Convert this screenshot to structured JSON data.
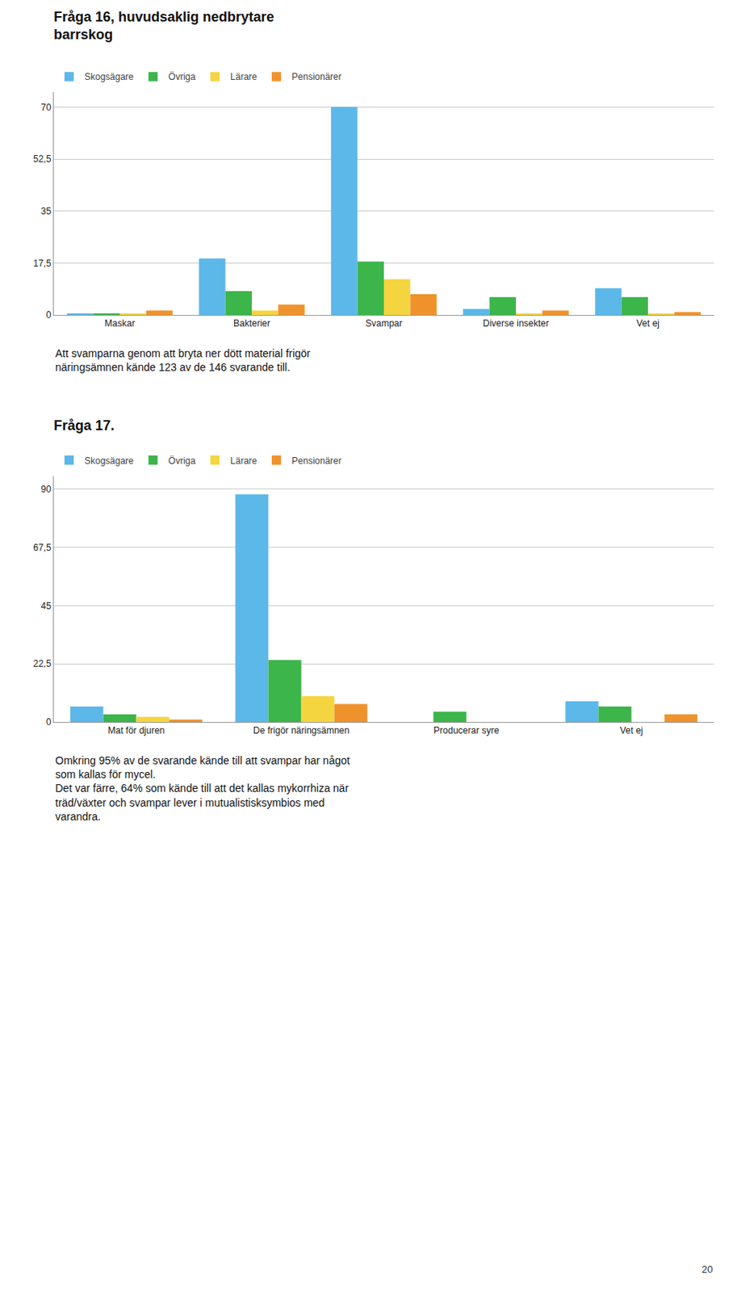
{
  "chart_data": [
    {
      "type": "bar",
      "title": "Fråga 16, huvudsaklig nedbrytare\nbarrskog",
      "categories": [
        "Maskar",
        "Bakterier",
        "Svampar",
        "Diverse insekter",
        "Vet ej"
      ],
      "series": [
        {
          "name": "Skogsägare",
          "color": "#5BB8E8",
          "values": [
            0.5,
            19,
            70,
            2,
            9
          ]
        },
        {
          "name": "Övriga",
          "color": "#3CB54A",
          "values": [
            0.5,
            8,
            18,
            6,
            6
          ]
        },
        {
          "name": "Lärare",
          "color": "#F5D53F",
          "values": [
            0.5,
            1.5,
            12,
            0.5,
            0.5
          ]
        },
        {
          "name": "Pensionärer",
          "color": "#F0922B",
          "values": [
            1.5,
            3.5,
            7,
            1.5,
            1
          ]
        }
      ],
      "ylim": [
        0,
        75
      ],
      "yticks": [
        0,
        {
          "value": 17.5,
          "label": "17,5"
        },
        35,
        {
          "value": 52.5,
          "label": "52,5"
        },
        70
      ],
      "grid": true,
      "legend": "upper left",
      "annotations": [
        "Att svamparna genom att bryta ner dött material frigör\nnäringsämnen kände 123 av de 146 svarande till."
      ]
    },
    {
      "type": "bar",
      "title": "Fråga 17.",
      "categories": [
        "Mat för djuren",
        "De frigör näringsämnen",
        "Producerar syre",
        "Vet ej"
      ],
      "series": [
        {
          "name": "Skogsägare",
          "color": "#5BB8E8",
          "values": [
            6,
            88,
            0,
            8
          ]
        },
        {
          "name": "Övriga",
          "color": "#3CB54A",
          "values": [
            3,
            24,
            4,
            6
          ]
        },
        {
          "name": "Lärare",
          "color": "#F5D53F",
          "values": [
            2,
            10,
            0,
            0
          ]
        },
        {
          "name": "Pensionärer",
          "color": "#F0922B",
          "values": [
            1,
            7,
            0,
            3
          ]
        }
      ],
      "ylim": [
        0,
        95
      ],
      "yticks": [
        0,
        {
          "value": 22.5,
          "label": "22,5"
        },
        45,
        {
          "value": 67.5,
          "label": "67,5"
        },
        90
      ],
      "grid": true,
      "legend": "upper left",
      "annotations": [
        "Omkring 95% av de svarande kände till att svampar har något\nsom kallas för mycel.\nDet var färre, 64% som kände till att det kallas mykorrhiza när\nträd/växter och svampar lever i mutualistisksymbios med\nvarandra.",
        "20"
      ]
    }
  ]
}
